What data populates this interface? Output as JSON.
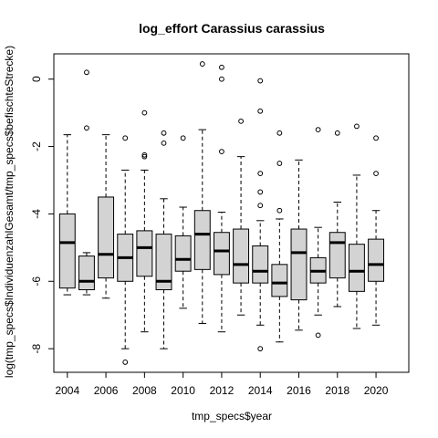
{
  "chart_data": {
    "type": "boxplot",
    "title": "log_effort Carassius carassius",
    "xlabel": "tmp_specs$year",
    "ylabel": "log(tmp_specs$IndividuenzahlGesamt/tmp_specs$befischteStrecke)",
    "xlim": [
      2003.3,
      2021.7
    ],
    "ylim": [
      -8.7,
      0.75
    ],
    "x_ticks": [
      2004,
      2006,
      2008,
      2010,
      2012,
      2014,
      2016,
      2018,
      2020
    ],
    "y_ticks": [
      -8,
      -6,
      -4,
      -2,
      0
    ],
    "box_fill": "#d3d3d3",
    "boxes": [
      {
        "year": 2004,
        "wlo": -6.4,
        "q1": -6.2,
        "median": -4.85,
        "q3": -4.0,
        "whi": -1.65,
        "outliers": []
      },
      {
        "year": 2005,
        "wlo": -6.4,
        "q1": -6.25,
        "median": -6.0,
        "q3": -5.25,
        "whi": -5.15,
        "outliers": [
          0.2,
          -1.45
        ]
      },
      {
        "year": 2006,
        "wlo": -6.5,
        "q1": -5.9,
        "median": -5.2,
        "q3": -3.5,
        "whi": -1.65,
        "outliers": []
      },
      {
        "year": 2007,
        "wlo": -8.0,
        "q1": -6.0,
        "median": -5.3,
        "q3": -4.6,
        "whi": -2.7,
        "outliers": [
          -1.75,
          -8.4
        ]
      },
      {
        "year": 2008,
        "wlo": -7.5,
        "q1": -5.85,
        "median": -5.0,
        "q3": -4.5,
        "whi": -2.7,
        "outliers": [
          -1.0,
          -2.25,
          -2.3
        ]
      },
      {
        "year": 2009,
        "wlo": -8.0,
        "q1": -6.25,
        "median": -6.0,
        "q3": -4.6,
        "whi": -3.55,
        "outliers": [
          -1.6,
          -1.9
        ]
      },
      {
        "year": 2010,
        "wlo": -6.8,
        "q1": -5.7,
        "median": -5.35,
        "q3": -4.65,
        "whi": -3.8,
        "outliers": [
          -1.75
        ]
      },
      {
        "year": 2011,
        "wlo": -7.25,
        "q1": -5.65,
        "median": -4.6,
        "q3": -3.9,
        "whi": -1.5,
        "outliers": [
          0.45
        ]
      },
      {
        "year": 2012,
        "wlo": -7.5,
        "q1": -5.8,
        "median": -5.1,
        "q3": -4.55,
        "whi": -3.95,
        "outliers": [
          0.35,
          0.0,
          -2.15
        ]
      },
      {
        "year": 2013,
        "wlo": -7.0,
        "q1": -6.05,
        "median": -5.5,
        "q3": -4.45,
        "whi": -2.3,
        "outliers": [
          -1.25
        ]
      },
      {
        "year": 2014,
        "wlo": -7.3,
        "q1": -6.05,
        "median": -5.7,
        "q3": -4.95,
        "whi": -4.2,
        "outliers": [
          -0.05,
          -0.95,
          -2.8,
          -3.35,
          -3.75,
          -8.0
        ]
      },
      {
        "year": 2015,
        "wlo": -7.8,
        "q1": -6.45,
        "median": -6.05,
        "q3": -5.5,
        "whi": -4.15,
        "outliers": [
          -1.6,
          -2.5,
          -3.9
        ]
      },
      {
        "year": 2016,
        "wlo": -7.45,
        "q1": -6.55,
        "median": -5.15,
        "q3": -4.45,
        "whi": -2.4,
        "outliers": []
      },
      {
        "year": 2017,
        "wlo": -7.0,
        "q1": -6.05,
        "median": -5.7,
        "q3": -5.3,
        "whi": -4.4,
        "outliers": [
          -1.5,
          -7.6
        ]
      },
      {
        "year": 2018,
        "wlo": -6.75,
        "q1": -5.9,
        "median": -4.85,
        "q3": -4.55,
        "whi": -3.65,
        "outliers": [
          -1.6
        ]
      },
      {
        "year": 2019,
        "wlo": -7.4,
        "q1": -6.3,
        "median": -5.7,
        "q3": -4.9,
        "whi": -2.85,
        "outliers": [
          -1.4
        ]
      },
      {
        "year": 2020,
        "wlo": -7.3,
        "q1": -6.0,
        "median": -5.5,
        "q3": -4.75,
        "whi": -3.9,
        "outliers": [
          -1.75,
          -2.8
        ]
      }
    ]
  }
}
